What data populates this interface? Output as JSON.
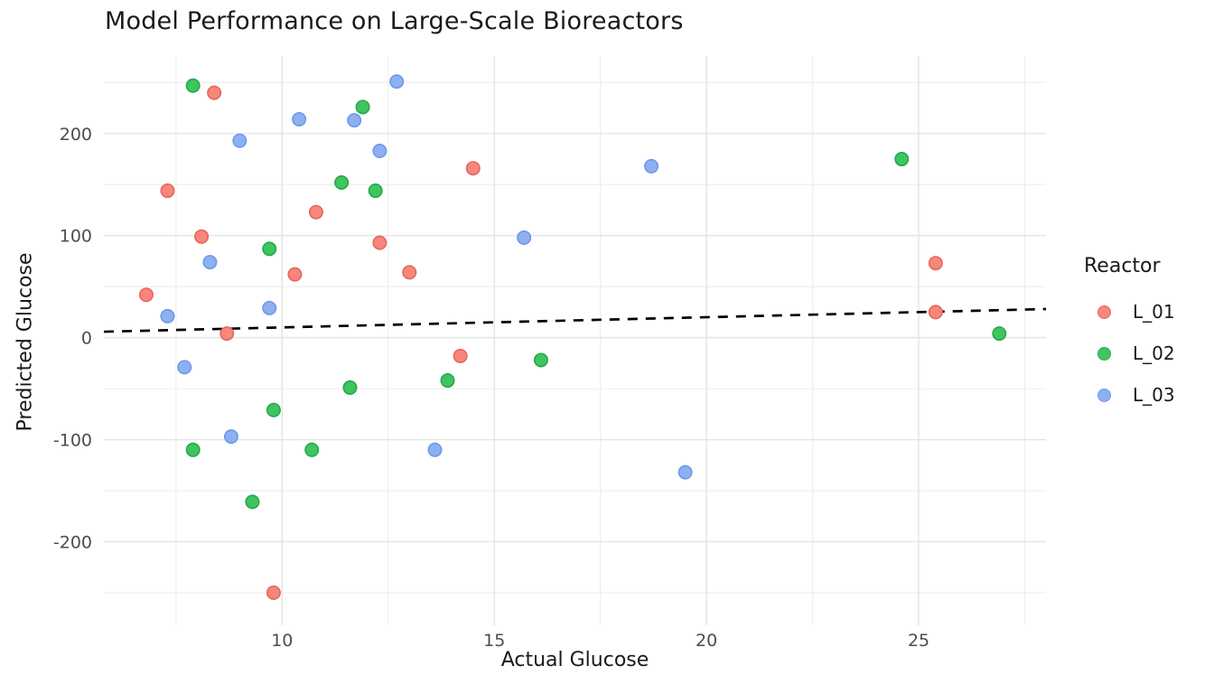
{
  "chart_data": {
    "type": "scatter",
    "title": "Model Performance on Large-Scale Bioreactors",
    "xlabel": "Actual Glucose",
    "ylabel": "Predicted Glucose",
    "xlim": [
      5.8,
      28.0
    ],
    "ylim": [
      -282,
      276
    ],
    "x_ticks": [
      10,
      15,
      20,
      25
    ],
    "y_ticks": [
      -200,
      -100,
      0,
      100,
      200
    ],
    "x_minor_ticks": [
      7.5,
      12.5,
      17.5,
      22.5,
      27.5
    ],
    "y_minor_ticks": [
      -250,
      -150,
      -50,
      50,
      150,
      250
    ],
    "grid": {
      "show": true,
      "major_color": "#e4e4e4",
      "minor_color": "#efefef"
    },
    "identity_line": {
      "style": "dashed",
      "color": "#000000",
      "from": [
        5.8,
        5.8
      ],
      "to": [
        28.0,
        28.0
      ]
    },
    "legend": {
      "title": "Reactor",
      "position": "right",
      "entries": [
        {
          "label": "L_01",
          "color": "#f7867d",
          "stroke": "#e8655b"
        },
        {
          "label": "L_02",
          "color": "#3ec560",
          "stroke": "#27a849"
        },
        {
          "label": "L_03",
          "color": "#8db0f2",
          "stroke": "#6d99e8"
        }
      ]
    },
    "series": [
      {
        "name": "L_01",
        "color": "#f7867d",
        "stroke": "#e8655b",
        "points": [
          [
            6.8,
            42
          ],
          [
            7.3,
            144
          ],
          [
            8.1,
            99
          ],
          [
            8.4,
            240
          ],
          [
            8.7,
            4
          ],
          [
            9.8,
            -250
          ],
          [
            10.3,
            62
          ],
          [
            10.8,
            123
          ],
          [
            12.3,
            93
          ],
          [
            13.0,
            64
          ],
          [
            14.2,
            -18
          ],
          [
            14.5,
            166
          ],
          [
            25.4,
            73
          ],
          [
            25.4,
            25
          ]
        ]
      },
      {
        "name": "L_02",
        "color": "#3ec560",
        "stroke": "#27a849",
        "points": [
          [
            7.9,
            247
          ],
          [
            7.9,
            -110
          ],
          [
            9.3,
            -161
          ],
          [
            9.7,
            87
          ],
          [
            9.8,
            -71
          ],
          [
            10.7,
            -110
          ],
          [
            11.4,
            152
          ],
          [
            11.6,
            -49
          ],
          [
            11.9,
            226
          ],
          [
            12.2,
            144
          ],
          [
            13.9,
            -42
          ],
          [
            16.1,
            -22
          ],
          [
            24.6,
            175
          ],
          [
            26.9,
            4
          ]
        ]
      },
      {
        "name": "L_03",
        "color": "#8db0f2",
        "stroke": "#6d99e8",
        "points": [
          [
            7.3,
            21
          ],
          [
            7.7,
            -29
          ],
          [
            8.3,
            74
          ],
          [
            8.8,
            -97
          ],
          [
            9.0,
            193
          ],
          [
            9.7,
            29
          ],
          [
            10.4,
            214
          ],
          [
            11.7,
            213
          ],
          [
            12.3,
            183
          ],
          [
            12.7,
            251
          ],
          [
            13.6,
            -110
          ],
          [
            15.7,
            98
          ],
          [
            18.7,
            168
          ],
          [
            19.5,
            -132
          ]
        ]
      }
    ]
  }
}
